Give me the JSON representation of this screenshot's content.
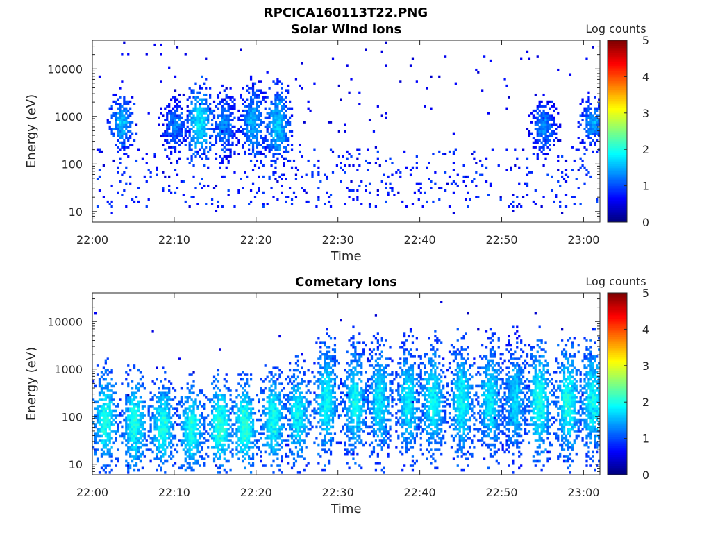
{
  "figure_title": "RPCICA160113T22.PNG",
  "colors": {
    "colormap": "jet",
    "axes": "#262626",
    "background": "#ffffff"
  },
  "chart_data": [
    {
      "type": "heatmap",
      "title": "Solar Wind Ions",
      "xlabel": "Time",
      "ylabel": "Energy (eV)",
      "y_scale": "log",
      "ylim": [
        6,
        40000
      ],
      "xlim": [
        "22:00",
        "23:02"
      ],
      "x_ticks": [
        "22:00",
        "22:10",
        "22:20",
        "22:30",
        "22:40",
        "22:50",
        "23:00"
      ],
      "y_ticks": [
        "10",
        "100",
        "1000",
        "10000"
      ],
      "y_tick_values": [
        10,
        100,
        1000,
        10000
      ],
      "colorbar": {
        "label": "Log counts",
        "min": 0,
        "max": 5,
        "ticks": [
          "0",
          "1",
          "2",
          "3",
          "4",
          "5"
        ]
      },
      "bursts": [
        {
          "time": "22:03.5",
          "center_eV": 700,
          "spread_decades": 0.35,
          "peak_log_counts": 1.5
        },
        {
          "time": "22:10.0",
          "center_eV": 600,
          "spread_decades": 0.35,
          "peak_log_counts": 1.2
        },
        {
          "time": "22:13.0",
          "center_eV": 700,
          "spread_decades": 0.45,
          "peak_log_counts": 1.8
        },
        {
          "time": "22:16.0",
          "center_eV": 600,
          "spread_decades": 0.4,
          "peak_log_counts": 1.3
        },
        {
          "time": "22:19.5",
          "center_eV": 700,
          "spread_decades": 0.45,
          "peak_log_counts": 1.5
        },
        {
          "time": "22:22.5",
          "center_eV": 600,
          "spread_decades": 0.5,
          "peak_log_counts": 1.6
        },
        {
          "time": "22:55.0",
          "center_eV": 600,
          "spread_decades": 0.35,
          "peak_log_counts": 1.3
        },
        {
          "time": "23:01.0",
          "center_eV": 700,
          "spread_decades": 0.3,
          "peak_log_counts": 1.4
        }
      ],
      "low_energy_band": {
        "energy_range_eV": [
          12,
          200
        ],
        "peak_log_counts": 1.0
      },
      "scatter_log_counts": 0.6
    },
    {
      "type": "heatmap",
      "title": "Cometary Ions",
      "xlabel": "Time",
      "ylabel": "Energy (eV)",
      "y_scale": "log",
      "ylim": [
        6,
        40000
      ],
      "xlim": [
        "22:00",
        "23:02"
      ],
      "x_ticks": [
        "22:00",
        "22:10",
        "22:20",
        "22:30",
        "22:40",
        "22:50",
        "23:00"
      ],
      "y_ticks": [
        "10",
        "100",
        "1000",
        "10000"
      ],
      "y_tick_values": [
        10,
        100,
        1000,
        10000
      ],
      "colorbar": {
        "label": "Log counts",
        "min": 0,
        "max": 5,
        "ticks": [
          "0",
          "1",
          "2",
          "3",
          "4",
          "5"
        ]
      },
      "bursts": [
        {
          "time": "22:01.5",
          "center_eV": 80,
          "spread_decades": 0.6,
          "peak_log_counts": 2.0
        },
        {
          "time": "22:05.0",
          "center_eV": 70,
          "spread_decades": 0.6,
          "peak_log_counts": 2.0
        },
        {
          "time": "22:08.5",
          "center_eV": 60,
          "spread_decades": 0.55,
          "peak_log_counts": 2.0
        },
        {
          "time": "22:12.0",
          "center_eV": 50,
          "spread_decades": 0.55,
          "peak_log_counts": 2.0
        },
        {
          "time": "22:15.5",
          "center_eV": 60,
          "spread_decades": 0.55,
          "peak_log_counts": 2.1
        },
        {
          "time": "22:18.5",
          "center_eV": 60,
          "spread_decades": 0.55,
          "peak_log_counts": 2.1
        },
        {
          "time": "22:22.0",
          "center_eV": 80,
          "spread_decades": 0.6,
          "peak_log_counts": 2.0
        },
        {
          "time": "22:25.0",
          "center_eV": 100,
          "spread_decades": 0.6,
          "peak_log_counts": 1.9
        },
        {
          "time": "22:28.5",
          "center_eV": 200,
          "spread_decades": 0.7,
          "peak_log_counts": 1.9
        },
        {
          "time": "22:32.0",
          "center_eV": 200,
          "spread_decades": 0.7,
          "peak_log_counts": 1.9
        },
        {
          "time": "22:35.0",
          "center_eV": 200,
          "spread_decades": 0.7,
          "peak_log_counts": 1.8
        },
        {
          "time": "22:38.5",
          "center_eV": 200,
          "spread_decades": 0.7,
          "peak_log_counts": 1.8
        },
        {
          "time": "22:41.5",
          "center_eV": 200,
          "spread_decades": 0.7,
          "peak_log_counts": 1.9
        },
        {
          "time": "22:45.0",
          "center_eV": 200,
          "spread_decades": 0.7,
          "peak_log_counts": 1.9
        },
        {
          "time": "22:48.5",
          "center_eV": 200,
          "spread_decades": 0.7,
          "peak_log_counts": 1.8
        },
        {
          "time": "22:51.5",
          "center_eV": 200,
          "spread_decades": 0.7,
          "peak_log_counts": 1.7
        },
        {
          "time": "22:54.5",
          "center_eV": 200,
          "spread_decades": 0.7,
          "peak_log_counts": 2.0
        },
        {
          "time": "22:58.0",
          "center_eV": 200,
          "spread_decades": 0.7,
          "peak_log_counts": 2.0
        },
        {
          "time": "23:01.0",
          "center_eV": 200,
          "spread_decades": 0.7,
          "peak_log_counts": 1.9
        }
      ],
      "scatter_log_counts": 0.5
    }
  ]
}
